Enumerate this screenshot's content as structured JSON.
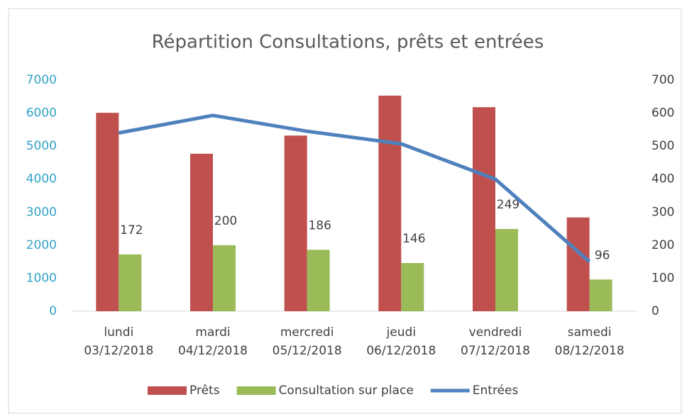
{
  "chart_data": {
    "type": "bar_line",
    "title": "Répartition Consultations, prêts et entrées",
    "categories": [
      [
        "lundi",
        "03/12/2018"
      ],
      [
        "mardi",
        "04/12/2018"
      ],
      [
        "mercredi",
        "05/12/2018"
      ],
      [
        "jeudi",
        "06/12/2018"
      ],
      [
        "vendredi",
        "07/12/2018"
      ],
      [
        "samedi",
        "08/12/2018"
      ]
    ],
    "series": [
      {
        "name": "Prêts",
        "type": "bar",
        "color": "#c0504d",
        "values": [
          6010,
          4770,
          5320,
          6530,
          6180,
          2840
        ]
      },
      {
        "name": "Consultation sur place",
        "type": "bar",
        "axis": "y2",
        "color": "#9bbb59",
        "values": [
          172,
          200,
          186,
          146,
          249,
          96
        ],
        "labels": true
      },
      {
        "name": "Entrées",
        "type": "line",
        "axis": "y2",
        "color": "#4f81bd",
        "values": [
          540,
          593,
          545,
          507,
          400,
          150
        ]
      }
    ],
    "ylim": [
      0,
      7000
    ],
    "yticks": [
      0,
      1000,
      2000,
      3000,
      4000,
      5000,
      6000,
      7000
    ],
    "y2lim": [
      0,
      700
    ],
    "y2ticks": [
      0,
      100,
      200,
      300,
      400,
      500,
      600,
      700
    ],
    "ytick_color": "#31a3c6",
    "legend": "bottom"
  }
}
